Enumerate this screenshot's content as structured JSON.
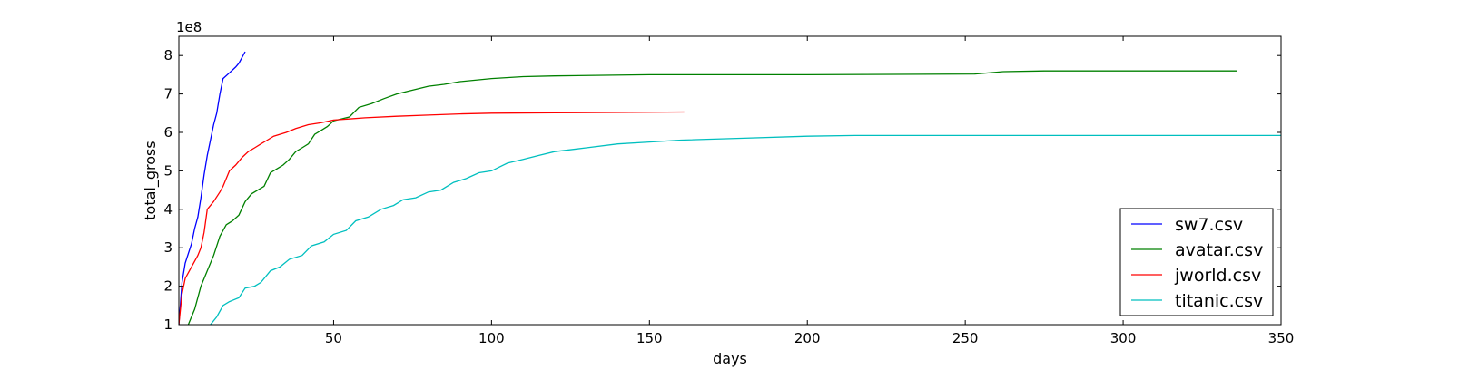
{
  "chart_data": {
    "type": "line",
    "title": "",
    "xlabel": "days",
    "ylabel": "total_gross",
    "y_multiplier_label": "1e8",
    "xlim": [
      1,
      350
    ],
    "ylim": [
      1,
      8.5
    ],
    "x_ticks": [
      50,
      100,
      150,
      200,
      250,
      300,
      350
    ],
    "y_ticks": [
      1,
      2,
      3,
      4,
      5,
      6,
      7,
      8
    ],
    "grid": false,
    "legend_position": "lower-right",
    "series": [
      {
        "name": "sw7.csv",
        "color": "#0000ff",
        "points": [
          [
            1,
            1.0
          ],
          [
            2,
            2.1
          ],
          [
            3,
            2.6
          ],
          [
            5,
            3.1
          ],
          [
            6,
            3.5
          ],
          [
            7,
            3.8
          ],
          [
            8,
            4.3
          ],
          [
            9,
            4.9
          ],
          [
            10,
            5.4
          ],
          [
            11,
            5.8
          ],
          [
            12,
            6.2
          ],
          [
            13,
            6.5
          ],
          [
            14,
            7.0
          ],
          [
            15,
            7.4
          ],
          [
            17,
            7.55
          ],
          [
            19,
            7.7
          ],
          [
            20,
            7.8
          ],
          [
            22,
            8.1
          ]
        ]
      },
      {
        "name": "avatar.csv",
        "color": "#008000",
        "points": [
          [
            1,
            0.75
          ],
          [
            4,
            1.0
          ],
          [
            6,
            1.4
          ],
          [
            8,
            2.0
          ],
          [
            10,
            2.4
          ],
          [
            12,
            2.8
          ],
          [
            14,
            3.3
          ],
          [
            16,
            3.6
          ],
          [
            18,
            3.7
          ],
          [
            20,
            3.85
          ],
          [
            22,
            4.2
          ],
          [
            24,
            4.4
          ],
          [
            26,
            4.5
          ],
          [
            28,
            4.6
          ],
          [
            30,
            4.95
          ],
          [
            32,
            5.05
          ],
          [
            34,
            5.15
          ],
          [
            36,
            5.3
          ],
          [
            38,
            5.5
          ],
          [
            40,
            5.6
          ],
          [
            42,
            5.7
          ],
          [
            44,
            5.95
          ],
          [
            46,
            6.05
          ],
          [
            48,
            6.15
          ],
          [
            50,
            6.3
          ],
          [
            55,
            6.4
          ],
          [
            58,
            6.65
          ],
          [
            62,
            6.75
          ],
          [
            66,
            6.88
          ],
          [
            70,
            7.0
          ],
          [
            75,
            7.1
          ],
          [
            80,
            7.2
          ],
          [
            85,
            7.25
          ],
          [
            90,
            7.32
          ],
          [
            100,
            7.4
          ],
          [
            110,
            7.45
          ],
          [
            120,
            7.47
          ],
          [
            150,
            7.5
          ],
          [
            200,
            7.5
          ],
          [
            253,
            7.52
          ],
          [
            262,
            7.58
          ],
          [
            275,
            7.6
          ],
          [
            336,
            7.6
          ]
        ]
      },
      {
        "name": "jworld.csv",
        "color": "#ff0000",
        "points": [
          [
            1,
            1.0
          ],
          [
            2,
            1.8
          ],
          [
            3,
            2.2
          ],
          [
            5,
            2.5
          ],
          [
            7,
            2.8
          ],
          [
            8,
            3.0
          ],
          [
            9,
            3.4
          ],
          [
            10,
            4.0
          ],
          [
            12,
            4.2
          ],
          [
            14,
            4.45
          ],
          [
            15,
            4.6
          ],
          [
            17,
            5.0
          ],
          [
            19,
            5.15
          ],
          [
            21,
            5.35
          ],
          [
            23,
            5.5
          ],
          [
            25,
            5.6
          ],
          [
            27,
            5.7
          ],
          [
            29,
            5.8
          ],
          [
            31,
            5.9
          ],
          [
            35,
            6.0
          ],
          [
            38,
            6.1
          ],
          [
            42,
            6.2
          ],
          [
            46,
            6.25
          ],
          [
            50,
            6.32
          ],
          [
            60,
            6.38
          ],
          [
            70,
            6.42
          ],
          [
            80,
            6.45
          ],
          [
            90,
            6.48
          ],
          [
            100,
            6.5
          ],
          [
            120,
            6.51
          ],
          [
            161,
            6.53
          ]
        ]
      },
      {
        "name": "titanic.csv",
        "color": "#00bfbf",
        "points": [
          [
            11,
            1.0
          ],
          [
            13,
            1.2
          ],
          [
            15,
            1.5
          ],
          [
            17,
            1.6
          ],
          [
            20,
            1.7
          ],
          [
            22,
            1.95
          ],
          [
            25,
            2.0
          ],
          [
            27,
            2.1
          ],
          [
            30,
            2.4
          ],
          [
            33,
            2.5
          ],
          [
            36,
            2.7
          ],
          [
            40,
            2.8
          ],
          [
            43,
            3.05
          ],
          [
            47,
            3.15
          ],
          [
            50,
            3.35
          ],
          [
            54,
            3.45
          ],
          [
            57,
            3.7
          ],
          [
            61,
            3.8
          ],
          [
            65,
            4.0
          ],
          [
            69,
            4.1
          ],
          [
            72,
            4.25
          ],
          [
            76,
            4.3
          ],
          [
            80,
            4.45
          ],
          [
            84,
            4.5
          ],
          [
            88,
            4.7
          ],
          [
            92,
            4.8
          ],
          [
            96,
            4.95
          ],
          [
            100,
            5.0
          ],
          [
            105,
            5.2
          ],
          [
            110,
            5.3
          ],
          [
            115,
            5.4
          ],
          [
            120,
            5.5
          ],
          [
            130,
            5.6
          ],
          [
            140,
            5.7
          ],
          [
            150,
            5.75
          ],
          [
            160,
            5.8
          ],
          [
            180,
            5.85
          ],
          [
            200,
            5.9
          ],
          [
            215,
            5.92
          ],
          [
            250,
            5.92
          ],
          [
            300,
            5.92
          ],
          [
            350,
            5.92
          ]
        ]
      }
    ]
  }
}
